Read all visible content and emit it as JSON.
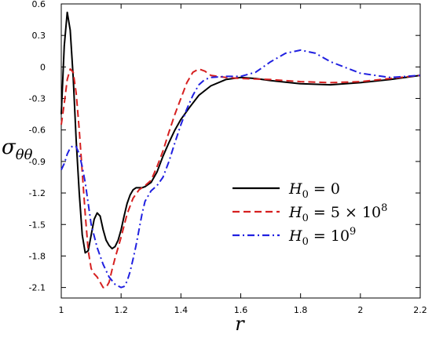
{
  "chart_data": {
    "type": "line",
    "xlabel": "r",
    "ylabel": "σ",
    "ylabel_subscript": "θθ",
    "xlim": [
      1.0,
      2.2
    ],
    "ylim": [
      -2.2,
      0.6
    ],
    "x_ticks": [
      "1",
      "1.2",
      "1.4",
      "1.6",
      "1.8",
      "2",
      "2.2"
    ],
    "y_ticks": [
      "0.6",
      "0.3",
      "0",
      "-0.3",
      "-0.6",
      "-0.9",
      "-1.2",
      "-1.5",
      "-1.8",
      "-2.1"
    ],
    "grid": false,
    "legend_position": "center-right",
    "series": [
      {
        "name_main": "H",
        "name_sub": "0",
        "name_rest": " = 0",
        "name_sup": "",
        "color": "#000000",
        "dash": "solid",
        "x": [
          1.0,
          1.01,
          1.02,
          1.03,
          1.04,
          1.05,
          1.06,
          1.07,
          1.08,
          1.09,
          1.1,
          1.11,
          1.12,
          1.13,
          1.14,
          1.15,
          1.16,
          1.17,
          1.18,
          1.19,
          1.2,
          1.21,
          1.22,
          1.23,
          1.24,
          1.25,
          1.26,
          1.27,
          1.28,
          1.3,
          1.32,
          1.34,
          1.36,
          1.38,
          1.4,
          1.43,
          1.46,
          1.5,
          1.55,
          1.6,
          1.65,
          1.7,
          1.8,
          1.9,
          2.0,
          2.1,
          2.2
        ],
        "y": [
          -0.45,
          0.2,
          0.52,
          0.35,
          -0.1,
          -0.7,
          -1.2,
          -1.6,
          -1.77,
          -1.75,
          -1.6,
          -1.45,
          -1.39,
          -1.42,
          -1.55,
          -1.65,
          -1.7,
          -1.73,
          -1.71,
          -1.65,
          -1.55,
          -1.42,
          -1.3,
          -1.22,
          -1.17,
          -1.15,
          -1.15,
          -1.15,
          -1.14,
          -1.1,
          -1.0,
          -0.85,
          -0.72,
          -0.6,
          -0.5,
          -0.38,
          -0.27,
          -0.18,
          -0.12,
          -0.1,
          -0.11,
          -0.13,
          -0.16,
          -0.17,
          -0.15,
          -0.12,
          -0.08
        ]
      },
      {
        "name_main": "H",
        "name_sub": "0",
        "name_rest": " = 5 × 10",
        "name_sup": "8",
        "color": "#d62020",
        "dash": "dashed",
        "x": [
          1.0,
          1.01,
          1.02,
          1.03,
          1.04,
          1.05,
          1.06,
          1.07,
          1.08,
          1.09,
          1.1,
          1.11,
          1.12,
          1.13,
          1.14,
          1.15,
          1.16,
          1.17,
          1.18,
          1.19,
          1.2,
          1.22,
          1.24,
          1.26,
          1.28,
          1.3,
          1.32,
          1.34,
          1.36,
          1.38,
          1.4,
          1.42,
          1.44,
          1.46,
          1.48,
          1.5,
          1.55,
          1.6,
          1.7,
          1.8,
          1.9,
          2.0,
          2.1,
          2.2
        ],
        "y": [
          -0.55,
          -0.35,
          -0.12,
          -0.02,
          -0.05,
          -0.25,
          -0.6,
          -1.0,
          -1.4,
          -1.75,
          -1.92,
          -1.97,
          -2.0,
          -2.05,
          -2.1,
          -2.1,
          -2.05,
          -1.93,
          -1.82,
          -1.72,
          -1.62,
          -1.4,
          -1.25,
          -1.17,
          -1.13,
          -1.08,
          -0.95,
          -0.8,
          -0.62,
          -0.45,
          -0.3,
          -0.15,
          -0.05,
          -0.02,
          -0.04,
          -0.08,
          -0.1,
          -0.11,
          -0.12,
          -0.14,
          -0.15,
          -0.14,
          -0.11,
          -0.08
        ]
      },
      {
        "name_main": "H",
        "name_sub": "0",
        "name_rest": " = 10",
        "name_sup": "9",
        "color": "#2020e0",
        "dash": "dashdot",
        "x": [
          1.0,
          1.01,
          1.02,
          1.03,
          1.04,
          1.05,
          1.06,
          1.07,
          1.08,
          1.09,
          1.1,
          1.12,
          1.14,
          1.16,
          1.18,
          1.2,
          1.21,
          1.22,
          1.23,
          1.24,
          1.25,
          1.26,
          1.27,
          1.28,
          1.3,
          1.32,
          1.34,
          1.36,
          1.38,
          1.4,
          1.42,
          1.44,
          1.46,
          1.48,
          1.5,
          1.55,
          1.6,
          1.65,
          1.7,
          1.75,
          1.8,
          1.85,
          1.9,
          2.0,
          2.1,
          2.2
        ],
        "y": [
          -0.98,
          -0.92,
          -0.83,
          -0.77,
          -0.75,
          -0.76,
          -0.83,
          -0.95,
          -1.1,
          -1.3,
          -1.5,
          -1.72,
          -1.88,
          -2.0,
          -2.07,
          -2.1,
          -2.09,
          -2.04,
          -1.95,
          -1.83,
          -1.7,
          -1.55,
          -1.4,
          -1.28,
          -1.18,
          -1.13,
          -1.05,
          -0.9,
          -0.72,
          -0.55,
          -0.4,
          -0.27,
          -0.17,
          -0.12,
          -0.1,
          -0.09,
          -0.09,
          -0.05,
          0.05,
          0.13,
          0.16,
          0.13,
          0.05,
          -0.06,
          -0.1,
          -0.08
        ]
      }
    ]
  }
}
